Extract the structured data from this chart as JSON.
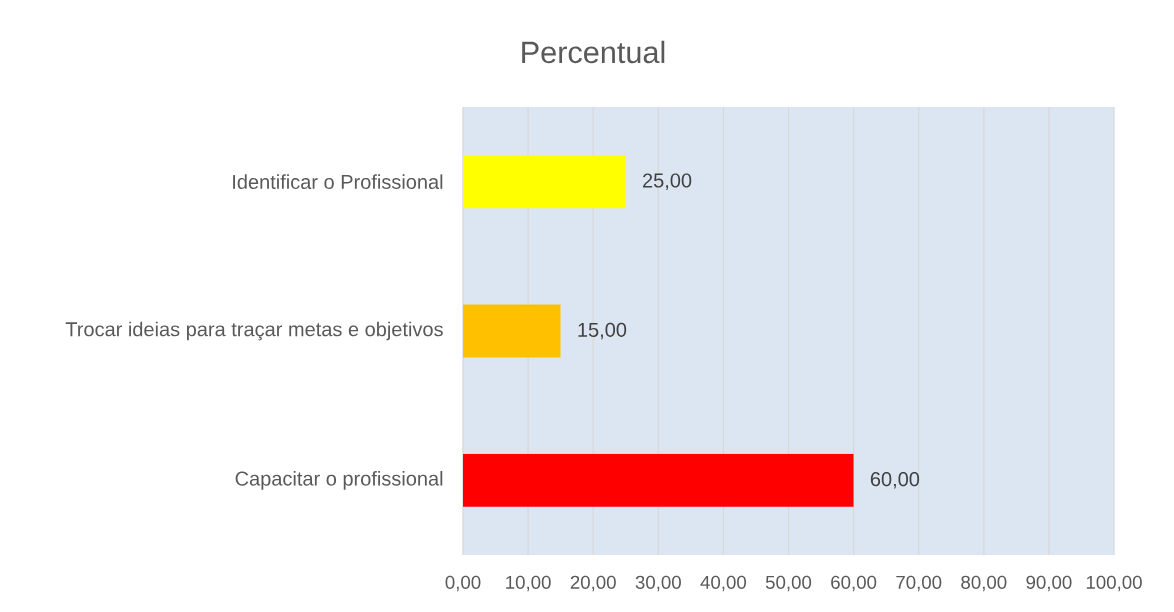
{
  "chart_data": {
    "type": "bar",
    "orientation": "horizontal",
    "title": "Percentual",
    "categories": [
      "Identificar o Profissional",
      "Trocar ideias para traçar metas e objetivos",
      "Capacitar o profissional"
    ],
    "values": [
      25,
      15,
      60
    ],
    "colors": [
      "#ffff00",
      "#ffc000",
      "#ff0000"
    ],
    "value_labels": [
      "25,00",
      "15,00",
      "60,00"
    ],
    "xlim": [
      0,
      100
    ],
    "xticks": [
      {
        "value": 0,
        "label": "0,00"
      },
      {
        "value": 10,
        "label": "10,00"
      },
      {
        "value": 20,
        "label": "20,00"
      },
      {
        "value": 30,
        "label": "30,00"
      },
      {
        "value": 40,
        "label": "40,00"
      },
      {
        "value": 50,
        "label": "50,00"
      },
      {
        "value": 60,
        "label": "60,00"
      },
      {
        "value": 70,
        "label": "70,00"
      },
      {
        "value": 80,
        "label": "80,00"
      },
      {
        "value": 90,
        "label": "90,00"
      },
      {
        "value": 100,
        "label": "100,00"
      }
    ],
    "grid": "x"
  }
}
